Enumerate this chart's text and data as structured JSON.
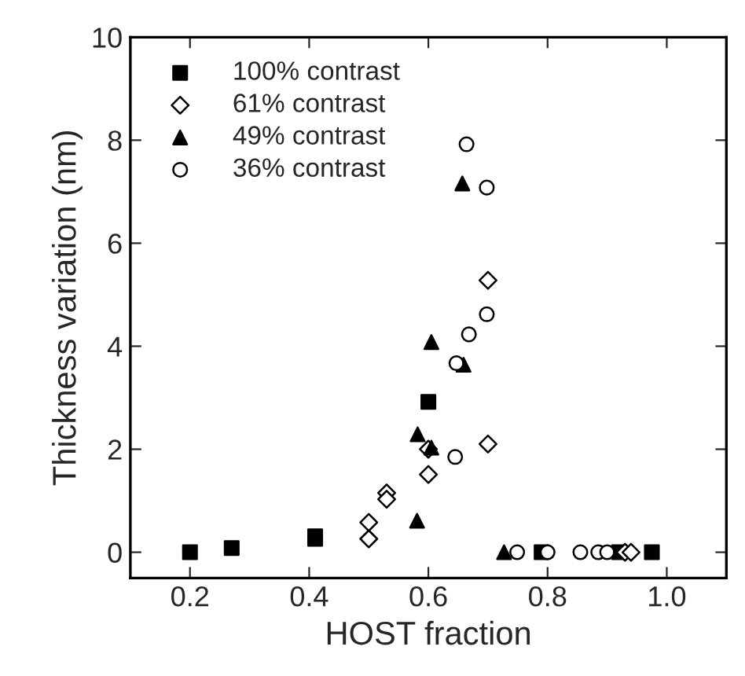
{
  "chart_data": {
    "type": "scatter",
    "xlabel": "HOST fraction",
    "ylabel": "Thickness variation (nm)",
    "xlim": [
      0.1,
      1.1
    ],
    "ylim": [
      -0.5,
      10
    ],
    "xticks": [
      {
        "value": 0.2,
        "label": "0.2"
      },
      {
        "value": 0.4,
        "label": "0.4"
      },
      {
        "value": 0.6,
        "label": "0.6"
      },
      {
        "value": 0.8,
        "label": "0.8"
      },
      {
        "value": 1.0,
        "label": "1.0"
      }
    ],
    "yticks": [
      0,
      2,
      4,
      6,
      8,
      10
    ],
    "legend": "top left",
    "grid": false,
    "series": [
      {
        "name": "100% contrast",
        "color": "#000000",
        "marker": "square",
        "x": [
          0.2,
          0.27,
          0.41,
          0.41,
          0.6,
          0.79,
          0.92,
          0.975
        ],
        "values": [
          0,
          0.08,
          0.26,
          0.31,
          2.92,
          0,
          0,
          0
        ]
      },
      {
        "name": "61% contrast",
        "color": "#000000",
        "marker": "diamond",
        "x": [
          0.5,
          0.5,
          0.53,
          0.53,
          0.6,
          0.6,
          0.7,
          0.7,
          0.93,
          0.94
        ],
        "values": [
          0.26,
          0.58,
          1.15,
          1.03,
          1.51,
          2.0,
          5.28,
          2.1,
          0,
          0
        ]
      },
      {
        "name": "49% contrast",
        "color": "#000000",
        "marker": "triangle",
        "x": [
          0.657,
          0.605,
          0.582,
          0.605,
          0.581,
          0.659,
          0.727
        ],
        "values": [
          7.16,
          4.08,
          2.29,
          2.03,
          0.61,
          3.64,
          0
        ]
      },
      {
        "name": "36% contrast",
        "color": "#000000",
        "marker": "circle",
        "x": [
          0.664,
          0.698,
          0.698,
          0.668,
          0.647,
          0.645,
          0.749,
          0.8,
          0.855,
          0.885,
          0.9
        ],
        "values": [
          7.92,
          7.08,
          4.62,
          4.23,
          3.67,
          1.85,
          0,
          0,
          0,
          0,
          0
        ]
      }
    ]
  }
}
